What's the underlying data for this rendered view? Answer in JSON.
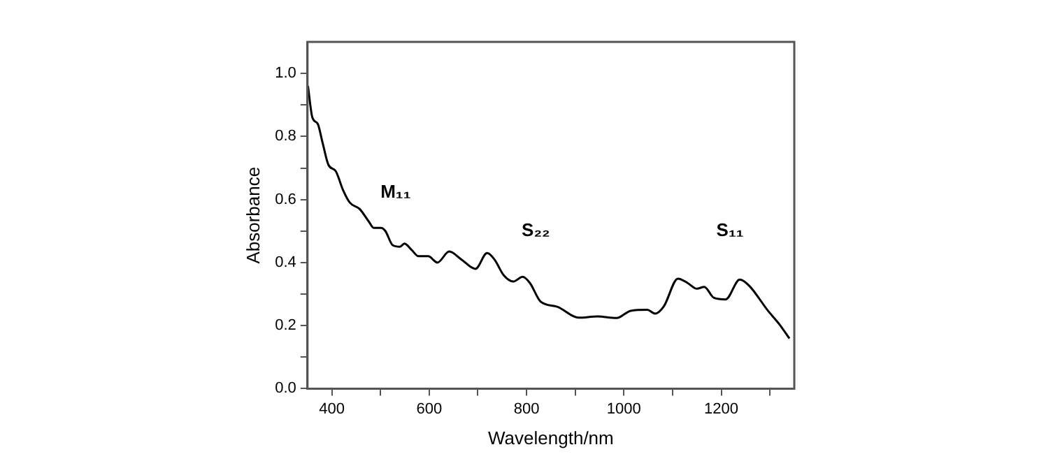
{
  "chart_data": {
    "type": "line",
    "xlabel": "Wavelength/nm",
    "ylabel": "Absorbance",
    "xlim": [
      350,
      1350
    ],
    "ylim": [
      0,
      1.1
    ],
    "xticks": [
      400,
      {
        "value": 500,
        "label": null
      },
      600,
      {
        "value": 700,
        "label": null
      },
      800,
      {
        "value": 900,
        "label": null
      },
      1000,
      {
        "value": 1100,
        "label": null
      },
      1200,
      {
        "value": 1300,
        "label": null
      }
    ],
    "yticks": [
      {
        "value": 0,
        "label": "0.0"
      },
      {
        "value": 0.1,
        "label": null
      },
      {
        "value": 0.2,
        "label": "0.2"
      },
      {
        "value": 0.3,
        "label": null
      },
      {
        "value": 0.4,
        "label": "0.4"
      },
      {
        "value": 0.5,
        "label": null
      },
      {
        "value": 0.6,
        "label": "0.6"
      },
      {
        "value": 0.7,
        "label": null
      },
      {
        "value": 0.8,
        "label": "0.8"
      },
      {
        "value": 0.9,
        "label": null
      },
      {
        "value": 1.0,
        "label": "1.0"
      }
    ],
    "grid": false,
    "legend": false,
    "marker": "none",
    "line_style": "solid",
    "series": [
      {
        "color": "#000000",
        "x": [
          351,
          360,
          371,
          381,
          393,
          408,
          423,
          437,
          457,
          476,
          486,
          501,
          510,
          525,
          540,
          549,
          564,
          578,
          598,
          617,
          641,
          666,
          695,
          719,
          734,
          753,
          773,
          792,
          807,
          829,
          863,
          907,
          946,
          985,
          1014,
          1048,
          1064,
          1082,
          1111,
          1131,
          1150,
          1165,
          1185,
          1209,
          1238,
          1257,
          1296,
          1320,
          1340
        ],
        "values": [
          0.96,
          0.86,
          0.84,
          0.78,
          0.71,
          0.69,
          0.63,
          0.59,
          0.57,
          0.53,
          0.51,
          0.51,
          0.5,
          0.455,
          0.45,
          0.46,
          0.44,
          0.42,
          0.42,
          0.4,
          0.435,
          0.41,
          0.38,
          0.43,
          0.41,
          0.36,
          0.34,
          0.355,
          0.335,
          0.276,
          0.26,
          0.225,
          0.229,
          0.224,
          0.247,
          0.25,
          0.238,
          0.261,
          0.349,
          0.335,
          0.317,
          0.323,
          0.288,
          0.283,
          0.346,
          0.327,
          0.247,
          0.203,
          0.159
        ]
      }
    ],
    "annotations": [
      "M₁₁",
      "S₂₂",
      "S₁₁"
    ]
  }
}
